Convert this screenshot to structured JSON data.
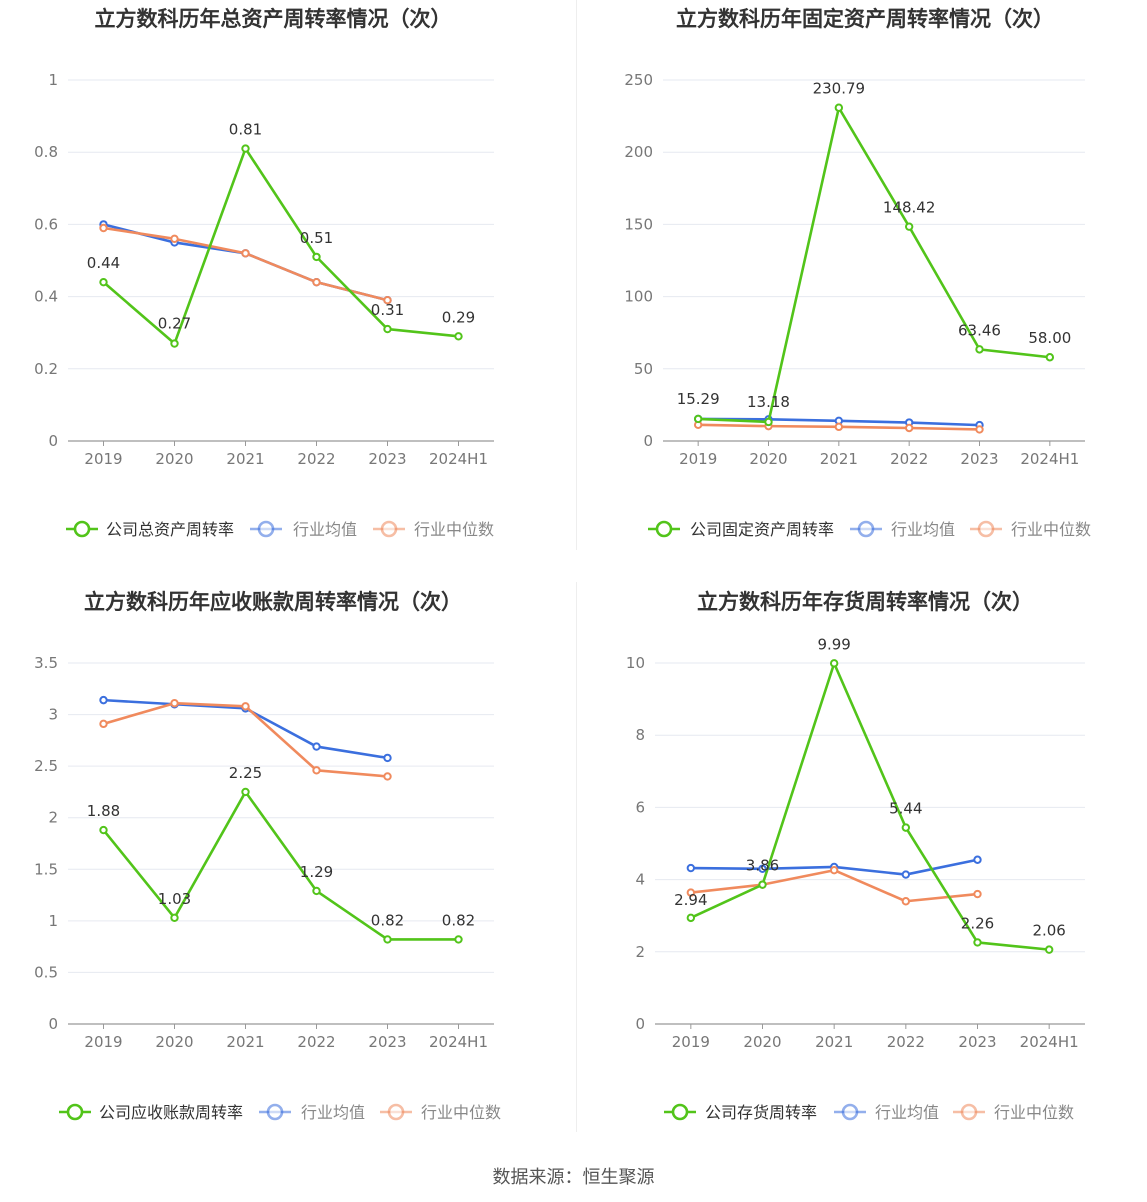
{
  "chart_data": [
    {
      "type": "line",
      "title": "立方数科历年总资产周转率情况（次）",
      "categories": [
        "2019",
        "2020",
        "2021",
        "2022",
        "2023",
        "2024H1"
      ],
      "ylim": [
        0,
        1
      ],
      "yticks": [
        "0",
        "0.2",
        "0.4",
        "0.6",
        "0.8",
        "1"
      ],
      "series": [
        {
          "name": "公司总资产周转率",
          "color": "#52c41a",
          "values": [
            0.44,
            0.27,
            0.81,
            0.51,
            0.31,
            0.29
          ],
          "labels": [
            "0.44",
            "0.27",
            "0.81",
            "0.51",
            "0.31",
            "0.29"
          ]
        },
        {
          "name": "行业均值",
          "color": "#3b6fde",
          "values": [
            0.6,
            0.55,
            0.52,
            0.44,
            0.39,
            null
          ]
        },
        {
          "name": "行业中位数",
          "color": "#f08a5d",
          "values": [
            0.59,
            0.56,
            0.52,
            0.44,
            0.39,
            null
          ]
        }
      ]
    },
    {
      "type": "line",
      "title": "立方数科历年固定资产周转率情况（次）",
      "categories": [
        "2019",
        "2020",
        "2021",
        "2022",
        "2023",
        "2024H1"
      ],
      "ylim": [
        0,
        250
      ],
      "yticks": [
        "0",
        "50",
        "100",
        "150",
        "200",
        "250"
      ],
      "series": [
        {
          "name": "公司固定资产周转率",
          "color": "#52c41a",
          "values": [
            15.29,
            13.18,
            230.79,
            148.42,
            63.46,
            58.0
          ],
          "labels": [
            "15.29",
            "13.18",
            "230.79",
            "148.42",
            "63.46",
            "58.00"
          ]
        },
        {
          "name": "行业均值",
          "color": "#3b6fde",
          "values": [
            15.3,
            15.0,
            14.0,
            12.8,
            11.0,
            null
          ]
        },
        {
          "name": "行业中位数",
          "color": "#f08a5d",
          "values": [
            11.2,
            10.3,
            9.8,
            9.0,
            8.0,
            null
          ]
        }
      ]
    },
    {
      "type": "line",
      "title": "立方数科历年应收账款周转率情况（次）",
      "categories": [
        "2019",
        "2020",
        "2021",
        "2022",
        "2023",
        "2024H1"
      ],
      "ylim": [
        0,
        3.5
      ],
      "yticks": [
        "0",
        "0.5",
        "1",
        "1.5",
        "2",
        "2.5",
        "3",
        "3.5"
      ],
      "series": [
        {
          "name": "公司应收账款周转率",
          "color": "#52c41a",
          "values": [
            1.88,
            1.03,
            2.25,
            1.29,
            0.82,
            0.82
          ],
          "labels": [
            "1.88",
            "1.03",
            "2.25",
            "1.29",
            "0.82",
            "0.82"
          ]
        },
        {
          "name": "行业均值",
          "color": "#3b6fde",
          "values": [
            3.14,
            3.1,
            3.06,
            2.69,
            2.58,
            null
          ]
        },
        {
          "name": "行业中位数",
          "color": "#f08a5d",
          "values": [
            2.91,
            3.11,
            3.08,
            2.46,
            2.4,
            null
          ]
        }
      ]
    },
    {
      "type": "line",
      "title": "立方数科历年存货周转率情况（次）",
      "categories": [
        "2019",
        "2020",
        "2021",
        "2022",
        "2023",
        "2024H1"
      ],
      "ylim": [
        0,
        10
      ],
      "yticks": [
        "0",
        "2",
        "4",
        "6",
        "8",
        "10"
      ],
      "series": [
        {
          "name": "公司存货周转率",
          "color": "#52c41a",
          "values": [
            2.94,
            3.86,
            9.99,
            5.44,
            2.26,
            2.06
          ],
          "labels": [
            "2.94",
            "3.86",
            "9.99",
            "5.44",
            "2.26",
            "2.06"
          ]
        },
        {
          "name": "行业均值",
          "color": "#3b6fde",
          "values": [
            4.32,
            4.3,
            4.35,
            4.14,
            4.55,
            null
          ]
        },
        {
          "name": "行业中位数",
          "color": "#f08a5d",
          "values": [
            3.64,
            3.86,
            4.26,
            3.4,
            3.6,
            null
          ]
        }
      ]
    }
  ],
  "source": "数据来源：恒生聚源"
}
